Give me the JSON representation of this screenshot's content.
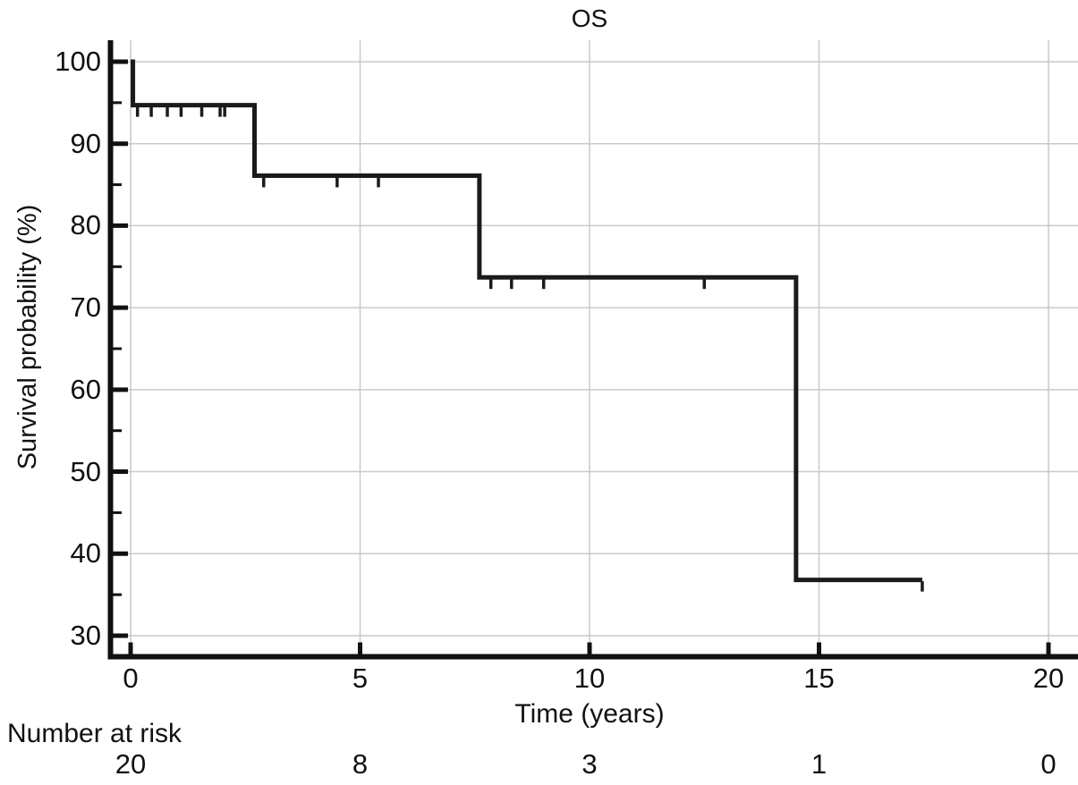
{
  "colors": {
    "curve": "#1b1b1b",
    "grid": "#c9c9c9",
    "axis": "#111111",
    "text": "#111111",
    "background": "#ffffff"
  },
  "chart_data": {
    "type": "line",
    "subtype": "kaplan_meier_step_survival",
    "title": "OS",
    "xlabel": "Time (years)",
    "ylabel": "Survival probability (%)",
    "xlim": [
      0,
      20
    ],
    "ylim": [
      30,
      100
    ],
    "grid": true,
    "x_ticks": [
      0,
      5,
      10,
      15,
      20
    ],
    "y_major_ticks": [
      100,
      90,
      80,
      70,
      60,
      50,
      40,
      30
    ],
    "y_minor_ticks": [
      95,
      85,
      75,
      65,
      55,
      45,
      35
    ],
    "series": [
      {
        "name": "OS",
        "start": [
          0,
          100
        ],
        "steps": [
          [
            0.05,
            94.7
          ],
          [
            2.7,
            86.1
          ],
          [
            7.6,
            73.7
          ],
          [
            14.5,
            36.8
          ]
        ],
        "end_time": 17.25,
        "censor_marks": [
          [
            0.15,
            94.7
          ],
          [
            0.45,
            94.7
          ],
          [
            0.8,
            94.7
          ],
          [
            1.1,
            94.7
          ],
          [
            1.55,
            94.7
          ],
          [
            1.95,
            94.7
          ],
          [
            2.05,
            94.7
          ],
          [
            2.9,
            86.1
          ],
          [
            4.5,
            86.1
          ],
          [
            5.4,
            86.1
          ],
          [
            7.85,
            73.7
          ],
          [
            8.3,
            73.7
          ],
          [
            9.0,
            73.7
          ],
          [
            12.5,
            73.7
          ],
          [
            17.25,
            36.8
          ]
        ]
      }
    ],
    "number_at_risk": {
      "label": "Number at risk",
      "times": [
        0,
        5,
        10,
        15,
        20
      ],
      "counts": [
        20,
        8,
        3,
        1,
        0
      ]
    }
  }
}
